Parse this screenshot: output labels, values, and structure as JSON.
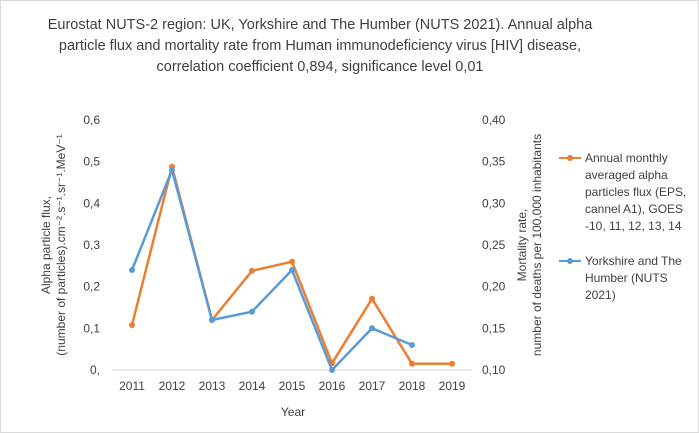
{
  "title_lines": [
    "Eurostat NUTS-2 region: UK, Yorkshire and The Humber (NUTS 2021). Annual alpha",
    "particle flux and mortality rate from Human immunodeficiency virus [HIV] disease,",
    "correlation coefficient 0,894, significance level 0,01"
  ],
  "chart_data": {
    "type": "line",
    "categories": [
      "2011",
      "2012",
      "2013",
      "2014",
      "2015",
      "2016",
      "2017",
      "2018",
      "2019"
    ],
    "xlabel": "Year",
    "ylabel_left_lines": [
      "Alpha particle flux,",
      "(number of particles).cm⁻².s⁻¹.sr⁻¹.MeV⁻¹"
    ],
    "ylabel_right_lines": [
      "Mortality rate,",
      "number of deaths per 100,000 inhabitants"
    ],
    "left_axis": {
      "ticks": [
        "0,",
        "0,1",
        "0,2",
        "0,3",
        "0,4",
        "0,5",
        "0,6"
      ],
      "ylim": [
        0,
        0.6
      ]
    },
    "right_axis": {
      "ticks": [
        "0,10",
        "0,15",
        "0,20",
        "0,25",
        "0,30",
        "0,35",
        "0,40"
      ],
      "ylim": [
        0.1,
        0.4
      ]
    },
    "grid": false,
    "legend_position": "right",
    "series": [
      {
        "name": "Annual monthly averaged alpha particles flux (EPS, cannel A1), GOES -10, 11, 12, 13, 14",
        "axis": "left",
        "color": "#ed7d31",
        "values": [
          0.108,
          0.488,
          0.12,
          0.238,
          0.26,
          0.016,
          0.171,
          0.015,
          0.015
        ]
      },
      {
        "name": "Yorkshire and The Humber (NUTS 2021)",
        "axis": "right",
        "color": "#5b9bd5",
        "values": [
          0.22,
          0.34,
          0.16,
          0.17,
          0.22,
          0.1,
          0.15,
          0.13,
          null
        ]
      }
    ]
  }
}
